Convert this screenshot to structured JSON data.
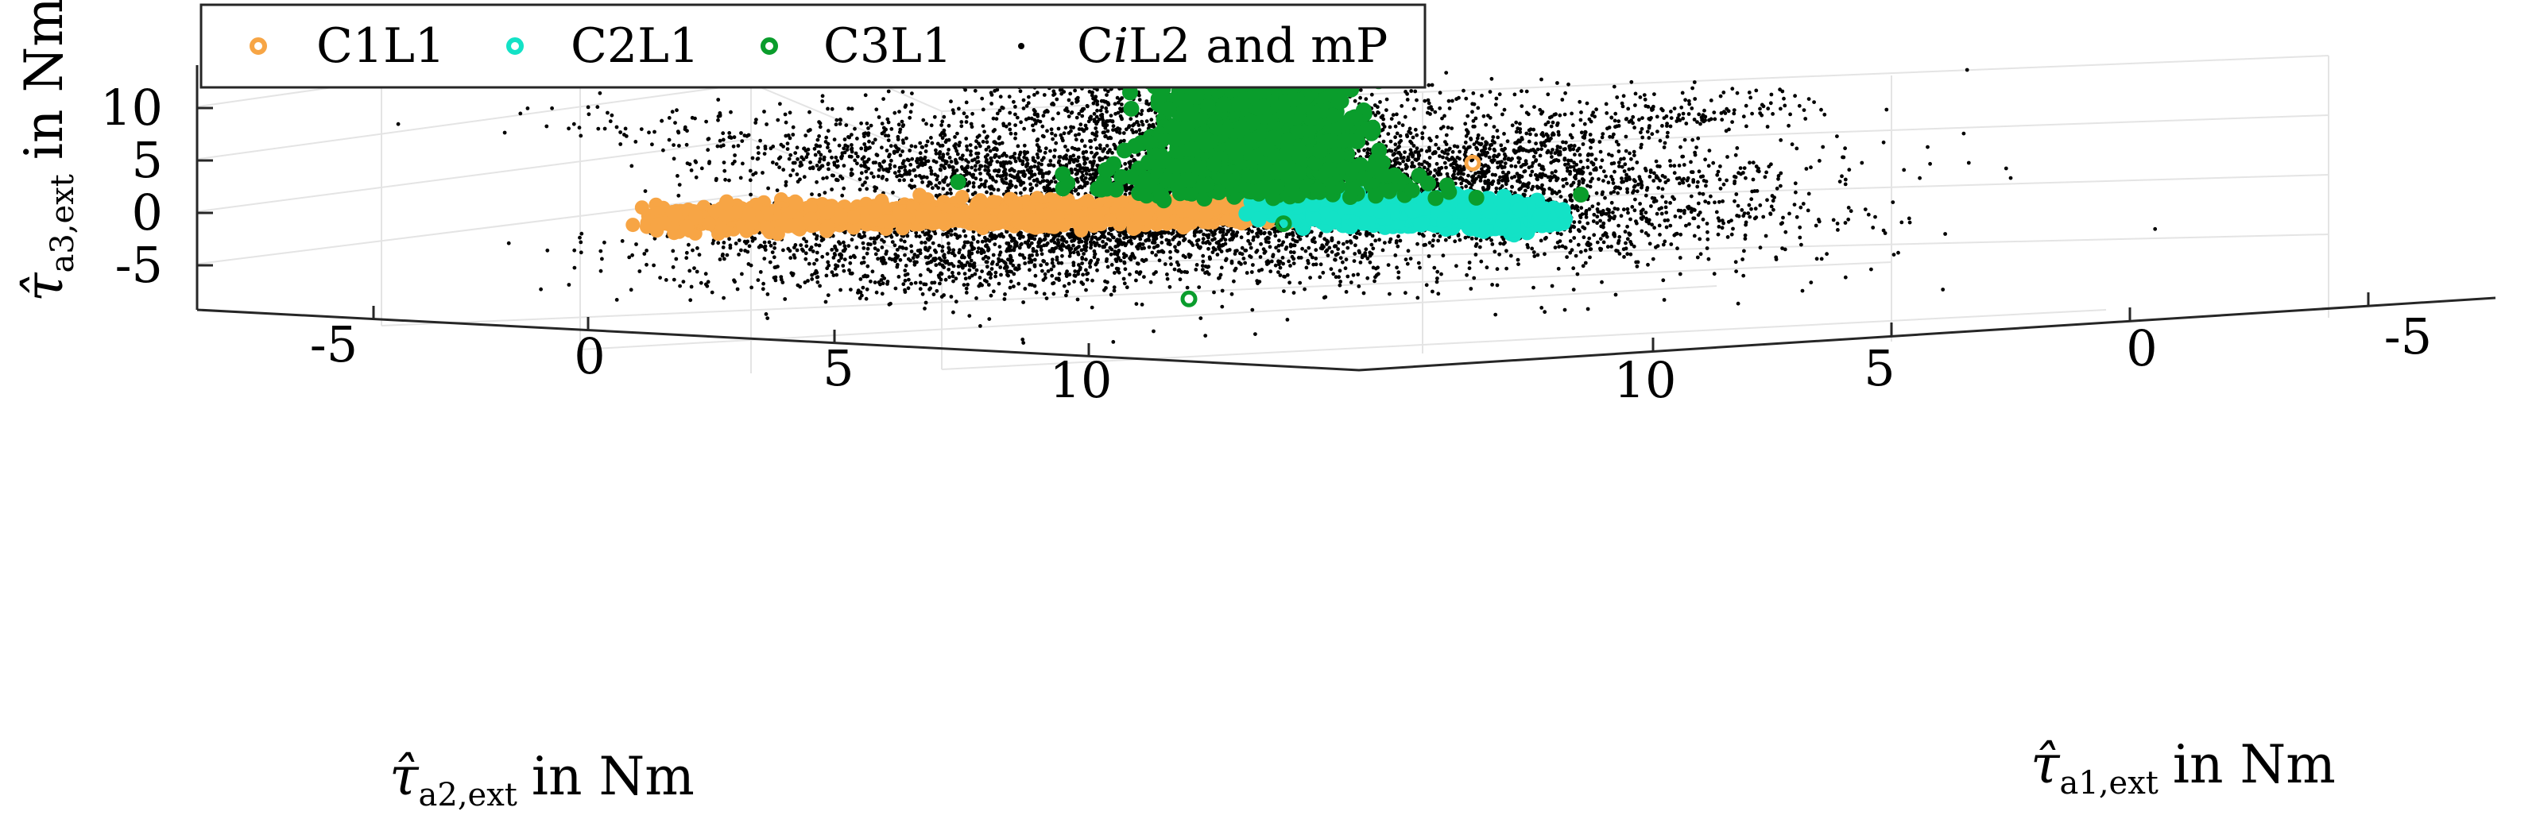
{
  "chart_data": {
    "type": "scatter",
    "projection": "3d",
    "title": "",
    "axes": {
      "x": {
        "label_symbol": "τ̂",
        "label_subscript": "a1,ext",
        "label_unit": "in Nm",
        "ticks": [
          -5,
          0,
          5,
          10
        ],
        "tick_labels": [
          "-5",
          "0",
          "5",
          "10"
        ],
        "range": [
          -8,
          13
        ]
      },
      "y": {
        "label_symbol": "τ̂",
        "label_subscript": "a2,ext",
        "label_unit": "in Nm",
        "ticks": [
          -5,
          0,
          5,
          10
        ],
        "tick_labels": [
          "-5",
          "0",
          "5",
          "10"
        ],
        "range": [
          -8,
          13
        ]
      },
      "z": {
        "label_symbol": "τ̂",
        "label_subscript": "a3,ext",
        "label_unit": "in Nm",
        "ticks": [
          -5,
          0,
          5,
          10
        ],
        "tick_labels": [
          "-5",
          "0",
          "5",
          "10"
        ],
        "range": [
          -9,
          14
        ]
      }
    },
    "grid": true,
    "legend": {
      "placement": "top-left",
      "orientation": "horizontal",
      "entries": [
        {
          "label": "C1L1",
          "marker": "circle",
          "color": "#f7a545"
        },
        {
          "label": "C2L1",
          "marker": "circle",
          "color": "#13e2c6"
        },
        {
          "label": "C3L1",
          "marker": "circle",
          "color": "#0a9d2c"
        },
        {
          "label_prefix": "C",
          "label_italic": "i",
          "label_suffix": "L2 and mP",
          "marker": "dot",
          "color": "#000000"
        }
      ]
    },
    "series": [
      {
        "name": "C1L1",
        "color": "#f7a545",
        "shape": "elongated cluster along the a2 axis",
        "approx_extent": {
          "a1": [
            -1,
            1.5
          ],
          "a2": [
            0,
            13
          ],
          "a3": [
            -4.5,
            1.5
          ]
        },
        "outliers": [
          {
            "a1": -2,
            "a2": -2,
            "a3": 3.5
          }
        ]
      },
      {
        "name": "C2L1",
        "color": "#13e2c6",
        "shape": "elongated cluster along the a1 axis",
        "approx_extent": {
          "a1": [
            -5,
            1
          ],
          "a2": [
            -1,
            1
          ],
          "a3": [
            -4,
            1
          ]
        }
      },
      {
        "name": "C3L1",
        "color": "#0a9d2c",
        "shape": "vertical cluster along the a3 axis",
        "approx_extent": {
          "a1": [
            -1,
            1
          ],
          "a2": [
            -1,
            1
          ],
          "a3": [
            0,
            14
          ]
        },
        "outliers": [
          {
            "a1": 0,
            "a2": 0,
            "a3": -2
          },
          {
            "a1": 1,
            "a2": 1,
            "a3": -9
          }
        ]
      },
      {
        "name": "CiL2 and mP",
        "color": "#000000",
        "shape": "dense trajectory point cloud surrounding all clusters",
        "approx_extent": {
          "a1": [
            -8,
            13
          ],
          "a2": [
            -8,
            13
          ],
          "a3": [
            -9,
            14
          ]
        }
      }
    ]
  }
}
